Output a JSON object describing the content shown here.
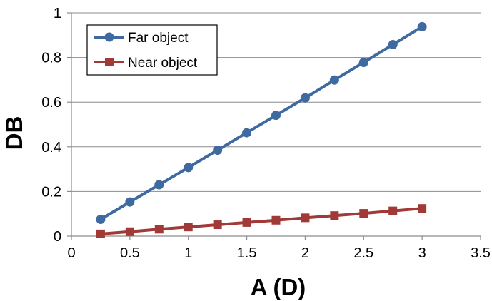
{
  "chart_data": {
    "type": "line",
    "xlabel": "A (D)",
    "ylabel": "DB",
    "xlim": [
      0,
      3.5
    ],
    "ylim": [
      0,
      1
    ],
    "xticks": [
      0,
      0.5,
      1,
      1.5,
      2,
      2.5,
      3,
      3.5
    ],
    "xtick_labels": [
      "0",
      "0.5",
      "1",
      "1.5",
      "2",
      "2.5",
      "3",
      "3.5"
    ],
    "yticks": [
      0,
      0.2,
      0.4,
      0.6,
      0.8,
      1
    ],
    "ytick_labels": [
      "0",
      "0.2",
      "0.4",
      "0.6",
      "0.8",
      "1"
    ],
    "grid": "horizontal",
    "legend_position": "top-left",
    "x": [
      0.25,
      0.5,
      0.75,
      1.0,
      1.25,
      1.5,
      1.75,
      2.0,
      2.25,
      2.5,
      2.75,
      3.0
    ],
    "series": [
      {
        "name": "Far object",
        "color": "#3f6aa0",
        "marker": "circle",
        "values": [
          0.075,
          0.153,
          0.23,
          0.307,
          0.385,
          0.463,
          0.541,
          0.619,
          0.699,
          0.778,
          0.858,
          0.938
        ]
      },
      {
        "name": "Near object",
        "color": "#a13a36",
        "marker": "square",
        "values": [
          0.01,
          0.02,
          0.031,
          0.041,
          0.051,
          0.061,
          0.071,
          0.082,
          0.092,
          0.102,
          0.113,
          0.124
        ]
      }
    ]
  }
}
